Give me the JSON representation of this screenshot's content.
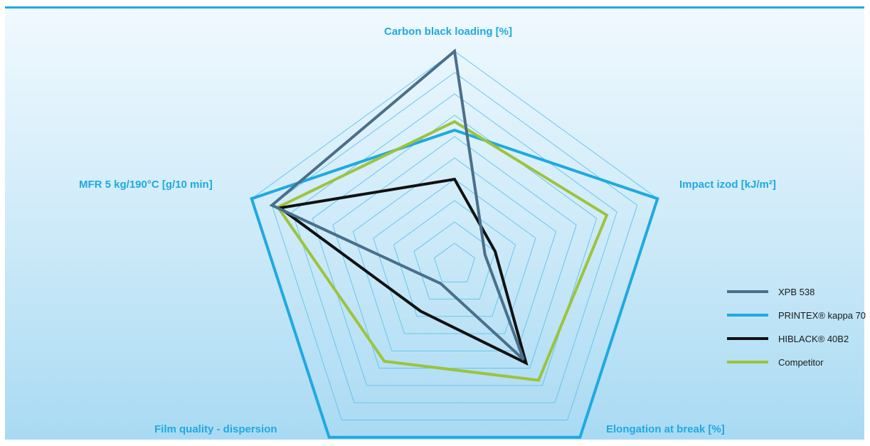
{
  "chart_data": {
    "type": "radar",
    "axes": [
      "Carbon black loading [%]",
      "Impact izod [kJ/m²]",
      "Elongation at break [%]",
      "Film quality - dispersion",
      "MFR 5 kg/190°C [g/10 min]"
    ],
    "rings": 10,
    "grid": true,
    "legend_position": "right",
    "series": [
      {
        "name": "XPB 538",
        "color": "#4a6f8a",
        "values": [
          1.0,
          0.15,
          0.55,
          0.11,
          0.9
        ]
      },
      {
        "name": "PRINTEX® kappa 70",
        "color": "#1fa9e1",
        "values": [
          0.63,
          1.0,
          1.0,
          1.0,
          1.0
        ]
      },
      {
        "name": "HIBLACK® 40B2",
        "color": "#111111",
        "values": [
          0.4,
          0.2,
          0.57,
          0.27,
          0.86
        ]
      },
      {
        "name": "Competitor",
        "color": "#9dc33b",
        "values": [
          0.67,
          0.75,
          0.67,
          0.56,
          0.87
        ]
      }
    ]
  }
}
